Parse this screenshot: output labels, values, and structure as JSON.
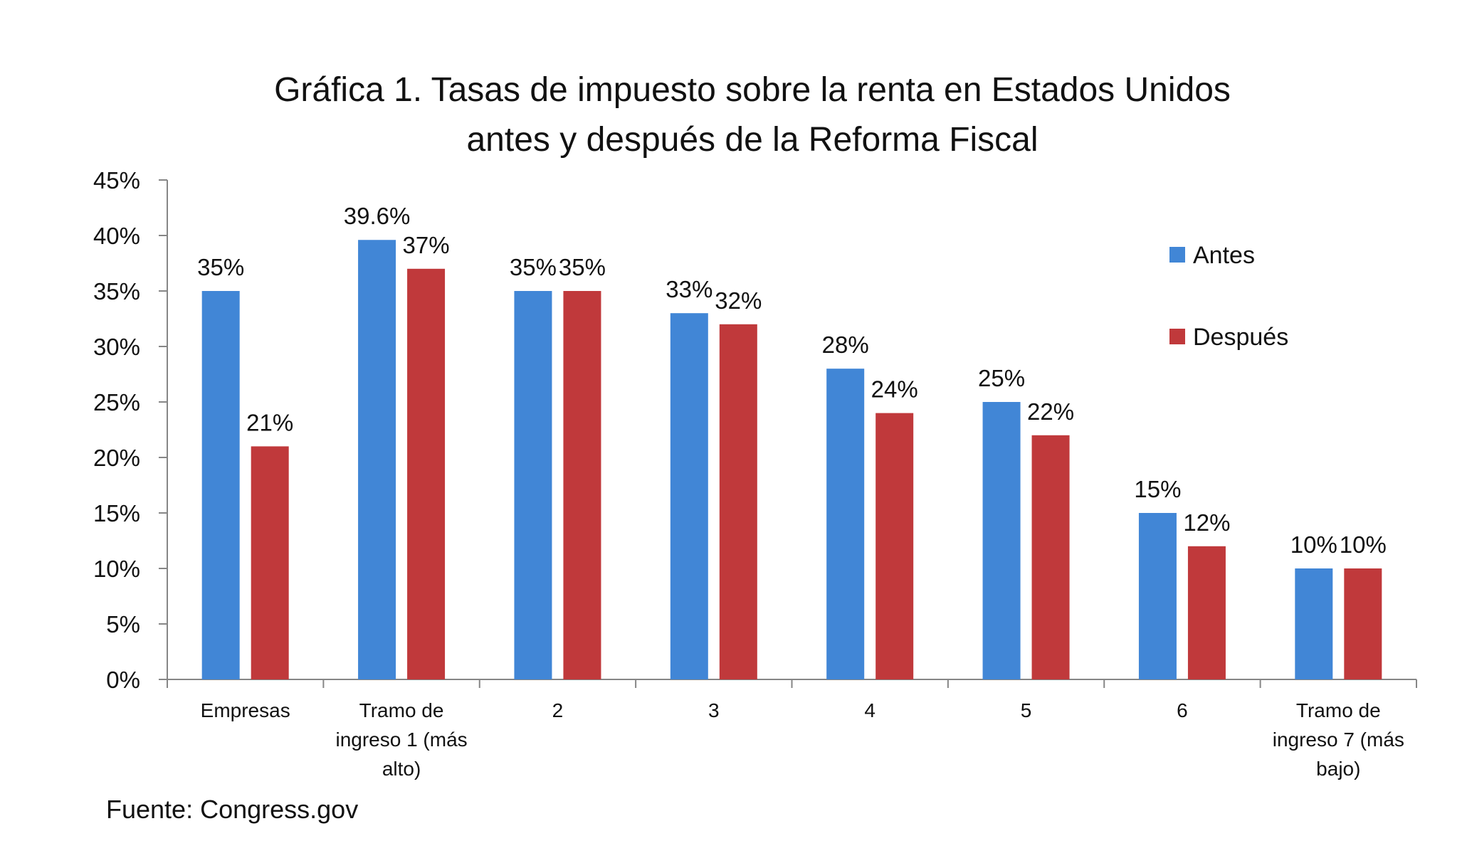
{
  "chart_data": {
    "type": "bar",
    "title": [
      "Gráfica 1. Tasas de impuesto sobre la renta en Estados Unidos",
      "antes y después de la Reforma Fiscal"
    ],
    "categories": [
      [
        "Empresas"
      ],
      [
        "Tramo de",
        "ingreso 1 (más",
        "alto)"
      ],
      [
        "2"
      ],
      [
        "3"
      ],
      [
        "4"
      ],
      [
        "5"
      ],
      [
        "6"
      ],
      [
        "Tramo de",
        "ingreso 7 (más",
        "bajo)"
      ]
    ],
    "series": [
      {
        "name": "Antes",
        "color": "#4186D6",
        "values": [
          35,
          39.6,
          35,
          33,
          28,
          25,
          15,
          10
        ],
        "labels": [
          "35%",
          "39.6%",
          "35%",
          "33%",
          "28%",
          "25%",
          "15%",
          "10%"
        ]
      },
      {
        "name": "Después",
        "color": "#C0393B",
        "values": [
          21,
          37,
          35,
          32,
          24,
          22,
          12,
          10
        ],
        "labels": [
          "21%",
          "37%",
          "35%",
          "32%",
          "24%",
          "22%",
          "12%",
          "10%"
        ]
      }
    ],
    "yticks": [
      "0%",
      "5%",
      "10%",
      "15%",
      "20%",
      "25%",
      "30%",
      "35%",
      "40%",
      "45%"
    ],
    "ylim": [
      0,
      45
    ],
    "xlabel": "",
    "ylabel": "",
    "grid": false,
    "legend_position": "right"
  },
  "source": "Fuente: Congress.gov"
}
